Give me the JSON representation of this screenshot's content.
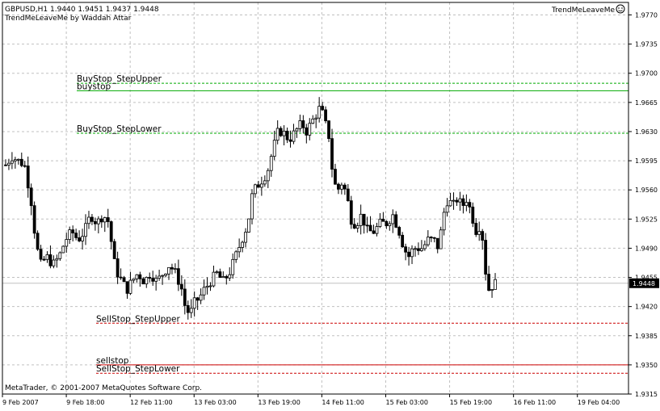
{
  "header": {
    "symbol_line": "GBPUSD,H1  1.9440 1.9451 1.9437 1.9448",
    "indicator_line": "TrendMeLeaveMe by Waddah Attar",
    "indicator_name": "TrendMeLeaveMe",
    "smiley_icon": "smiley-icon"
  },
  "footer": {
    "copyright": "MetaTrader, © 2001-2007 MetaQuotes Software Corp."
  },
  "colors": {
    "background": "#ffffff",
    "grid": "#c0c0c0",
    "candle": "#000000",
    "buy_lines": "#00aa00",
    "sell_lines": "#cc0000",
    "bid_line": "#c0c0c0"
  },
  "chart_data": {
    "type": "candlestick",
    "symbol": "GBPUSD",
    "timeframe": "H1",
    "ohlc_current": {
      "open": 1.944,
      "high": 1.9451,
      "low": 1.9437,
      "close": 1.9448
    },
    "y_ticks": [
      "1.9770",
      "1.9735",
      "1.9700",
      "1.9665",
      "1.9630",
      "1.9595",
      "1.9560",
      "1.9525",
      "1.9490",
      "1.9455",
      "1.9420",
      "1.9385",
      "1.9350",
      "1.9315"
    ],
    "ylim": [
      1.9315,
      1.9785
    ],
    "x_ticks": [
      "9 Feb 2007",
      "9 Feb 18:00",
      "12 Feb 11:00",
      "13 Feb 03:00",
      "13 Feb 19:00",
      "14 Feb 11:00",
      "15 Feb 03:00",
      "15 Feb 19:00",
      "16 Feb 11:00",
      "19 Feb 04:00"
    ],
    "current_price": "1.9448",
    "grid": true,
    "close_path": [
      [
        0,
        1.959
      ],
      [
        4,
        1.96
      ],
      [
        8,
        1.9595
      ],
      [
        12,
        1.959
      ],
      [
        16,
        1.955
      ],
      [
        19,
        1.95
      ],
      [
        22,
        1.947
      ],
      [
        26,
        1.948
      ],
      [
        30,
        1.947
      ],
      [
        34,
        1.948
      ],
      [
        38,
        1.95
      ],
      [
        42,
        1.951
      ],
      [
        46,
        1.95
      ],
      [
        50,
        1.951
      ],
      [
        54,
        1.953
      ],
      [
        58,
        1.952
      ],
      [
        62,
        1.953
      ],
      [
        66,
        1.952
      ],
      [
        68,
        1.948
      ],
      [
        71,
        1.946
      ],
      [
        74,
        1.945
      ],
      [
        77,
        1.944
      ],
      [
        80,
        1.945
      ],
      [
        84,
        1.946
      ],
      [
        88,
        1.945
      ],
      [
        92,
        1.946
      ],
      [
        96,
        1.945
      ],
      [
        100,
        1.946
      ],
      [
        104,
        1.947
      ],
      [
        108,
        1.946
      ],
      [
        112,
        1.944
      ],
      [
        114,
        1.942
      ],
      [
        117,
        1.941
      ],
      [
        120,
        1.9425
      ],
      [
        123,
        1.943
      ],
      [
        126,
        1.944
      ],
      [
        130,
        1.945
      ],
      [
        134,
        1.946
      ],
      [
        138,
        1.945
      ],
      [
        142,
        1.946
      ],
      [
        146,
        1.948
      ],
      [
        150,
        1.95
      ],
      [
        154,
        1.952
      ],
      [
        156,
        1.955
      ],
      [
        158,
        1.956
      ],
      [
        162,
        1.957
      ],
      [
        166,
        1.958
      ],
      [
        170,
        1.961
      ],
      [
        173,
        1.963
      ],
      [
        176,
        1.963
      ],
      [
        180,
        1.962
      ],
      [
        184,
        1.963
      ],
      [
        188,
        1.964
      ],
      [
        191,
        1.963
      ],
      [
        194,
        1.964
      ],
      [
        197,
        1.965
      ],
      [
        200,
        1.966
      ],
      [
        203,
        1.964
      ],
      [
        206,
        1.962
      ],
      [
        208,
        1.957
      ],
      [
        211,
        1.956
      ],
      [
        214,
        1.957
      ],
      [
        217,
        1.955
      ],
      [
        220,
        1.952
      ],
      [
        223,
        1.952
      ],
      [
        226,
        1.953
      ],
      [
        230,
        1.951
      ],
      [
        234,
        1.951
      ],
      [
        238,
        1.952
      ],
      [
        242,
        1.952
      ],
      [
        246,
        1.953
      ],
      [
        250,
        1.951
      ],
      [
        253,
        1.949
      ],
      [
        256,
        1.948
      ],
      [
        259,
        1.949
      ],
      [
        262,
        1.949
      ],
      [
        265,
        1.949
      ],
      [
        268,
        1.95
      ],
      [
        272,
        1.95
      ],
      [
        275,
        1.949
      ],
      [
        278,
        1.953
      ],
      [
        281,
        1.955
      ],
      [
        284,
        1.954
      ],
      [
        287,
        1.955
      ],
      [
        290,
        1.954
      ],
      [
        293,
        1.955
      ],
      [
        296,
        1.953
      ],
      [
        299,
        1.951
      ],
      [
        302,
        1.952
      ],
      [
        305,
        1.946
      ],
      [
        307,
        1.944
      ],
      [
        309,
        1.9445
      ],
      [
        311,
        1.9448
      ]
    ],
    "levels": [
      {
        "label": "BuyStop_StepUpper",
        "price": 1.9688,
        "color": "buy",
        "style": "dashed"
      },
      {
        "label": "buystop",
        "price": 1.9679,
        "color": "buy",
        "style": "solid"
      },
      {
        "label": "BuyStop_StepLower",
        "price": 1.9628,
        "color": "buy",
        "style": "dashed"
      },
      {
        "label": "SellStop_StepUpper",
        "price": 1.94,
        "color": "sell",
        "style": "dashed"
      },
      {
        "label": "sellstop",
        "price": 1.935,
        "color": "sell",
        "style": "solid"
      },
      {
        "label": "SellStop_StepLower",
        "price": 1.934,
        "color": "sell",
        "style": "dashed"
      }
    ]
  }
}
